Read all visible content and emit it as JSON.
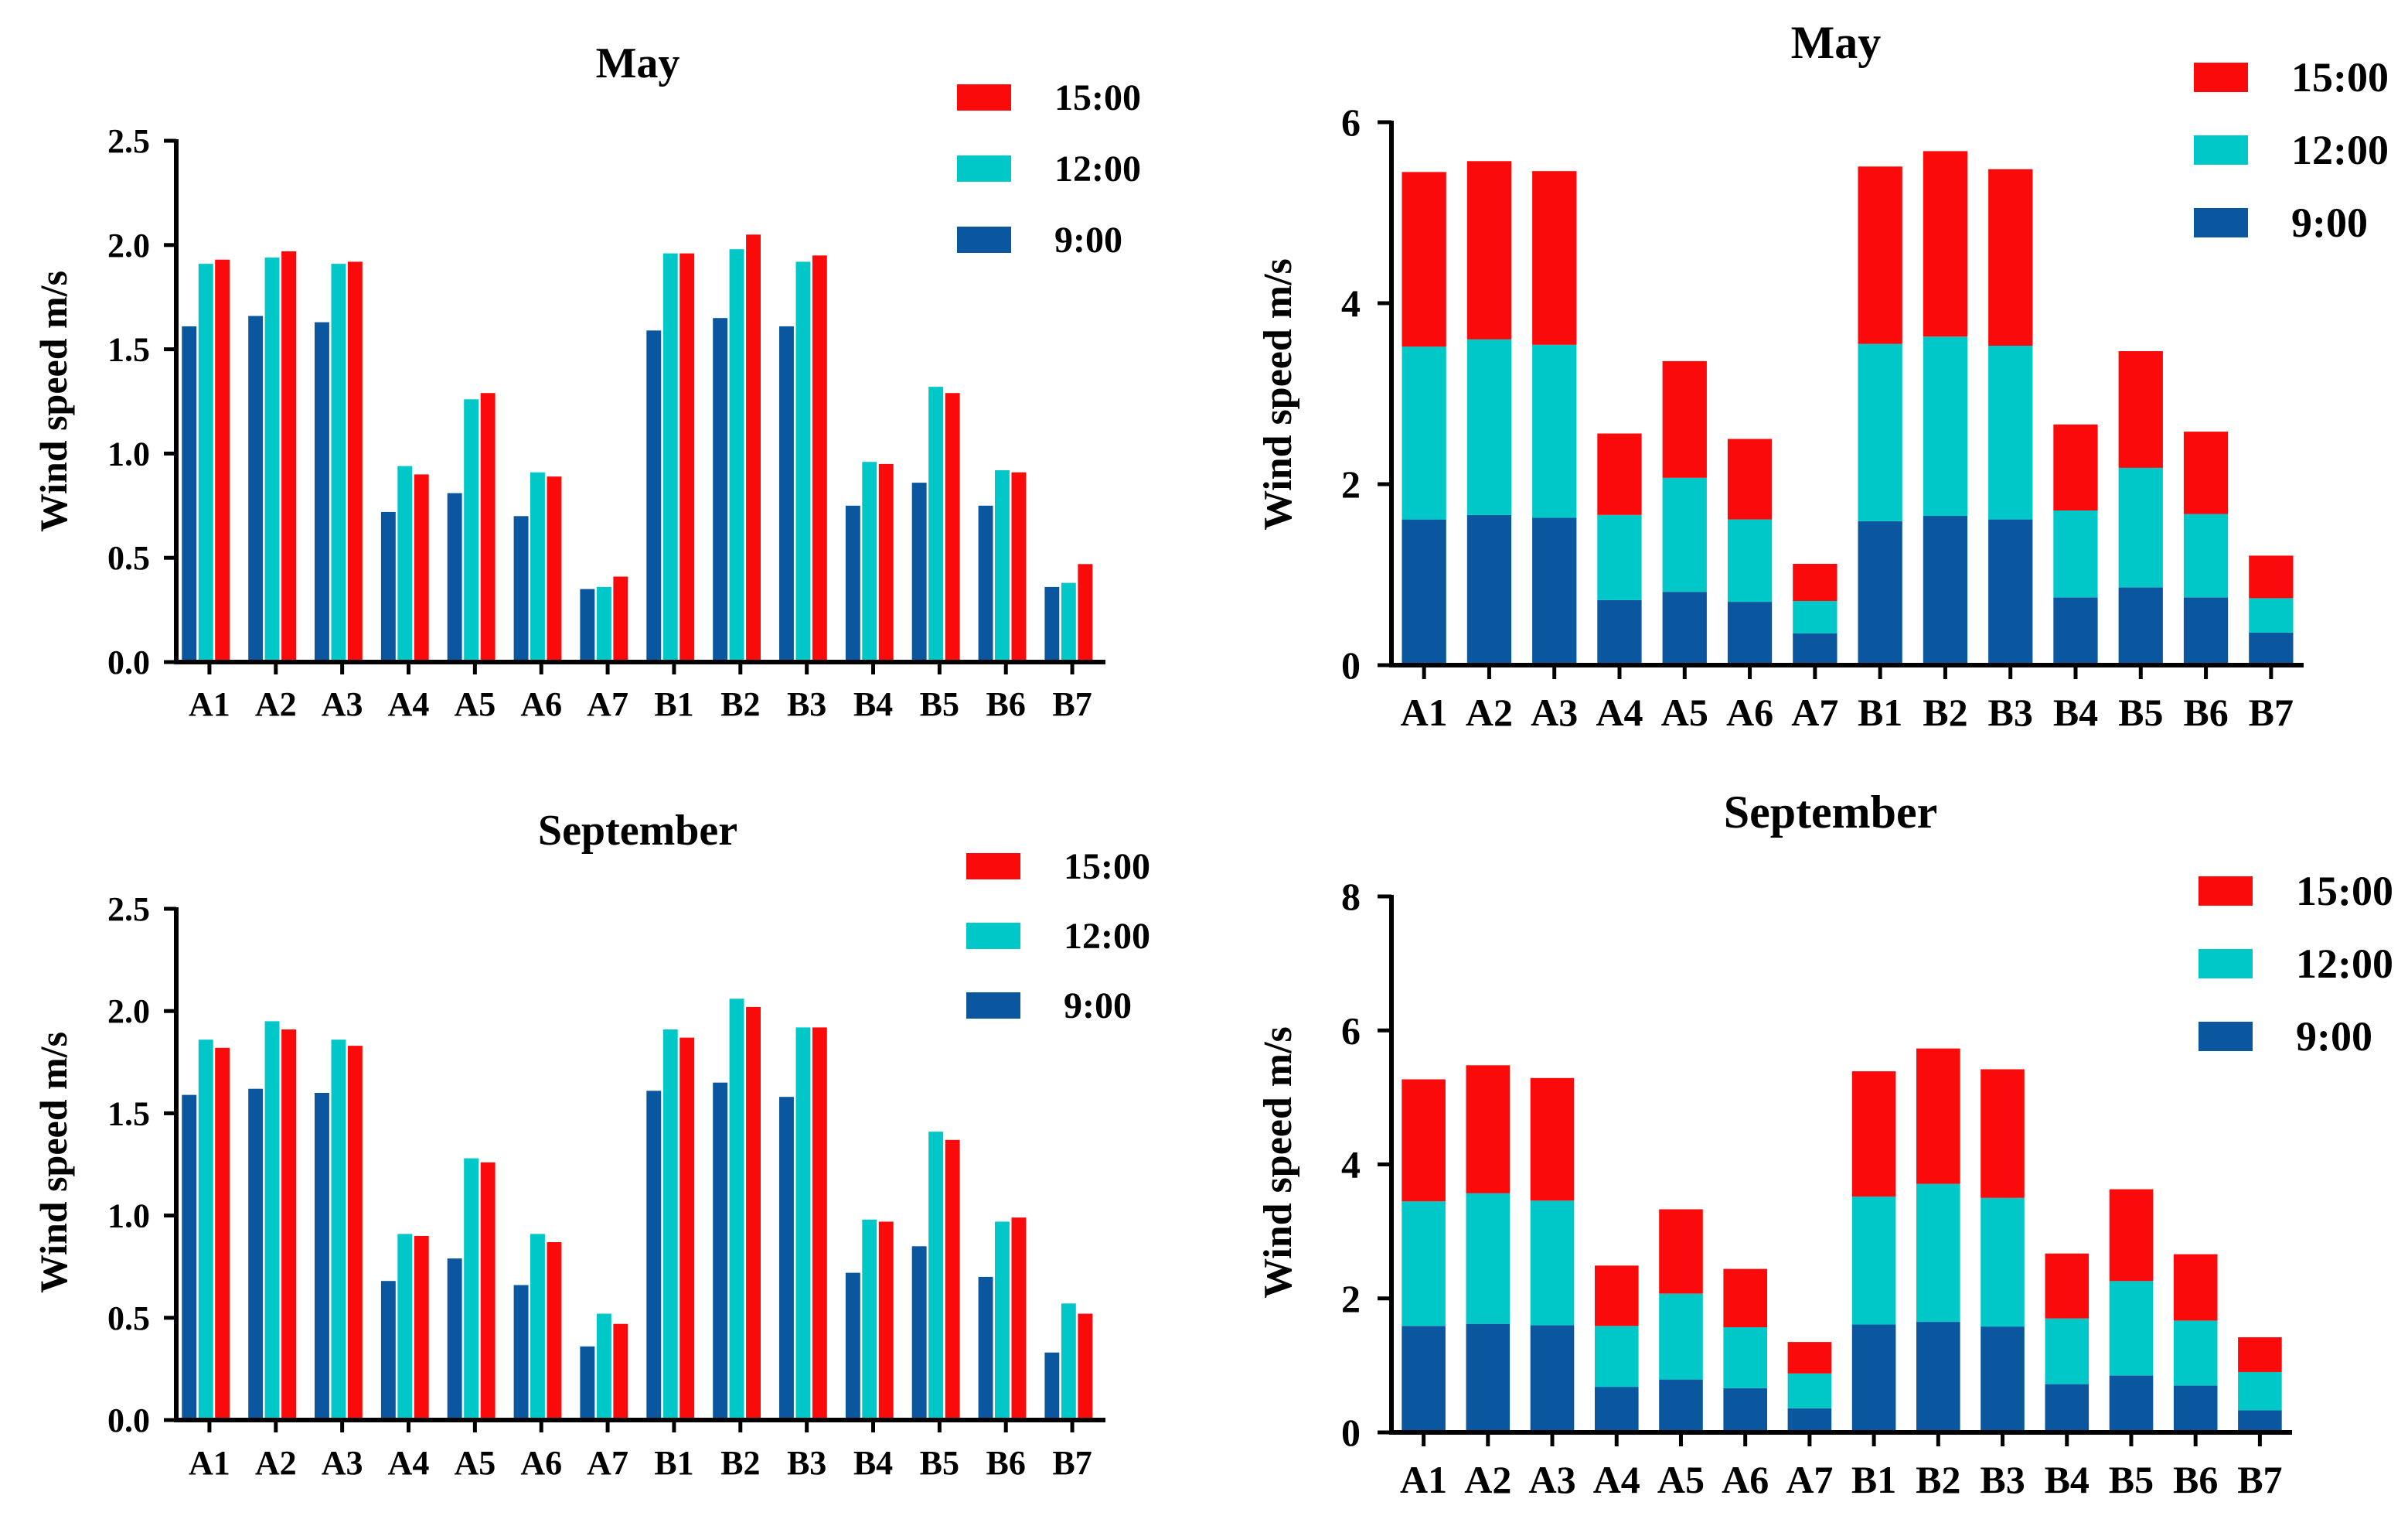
{
  "chart_data": [
    {
      "type": "bar",
      "title": "May",
      "xlabel": "",
      "ylabel": "Wind speed m/s",
      "ylim": [
        0,
        2.5
      ],
      "yticks": [
        "0.0",
        "0.5",
        "1.0",
        "1.5",
        "2.0",
        "2.5"
      ],
      "categories": [
        "A1",
        "A2",
        "A3",
        "A4",
        "A5",
        "A6",
        "A7",
        "B1",
        "B2",
        "B3",
        "B4",
        "B5",
        "B6",
        "B7"
      ],
      "series": [
        {
          "name": "9:00",
          "color": "#0a57a0",
          "values": [
            1.61,
            1.66,
            1.63,
            0.72,
            0.81,
            0.7,
            0.35,
            1.59,
            1.65,
            1.61,
            0.75,
            0.86,
            0.75,
            0.36
          ]
        },
        {
          "name": "12:00",
          "color": "#00c8c8",
          "values": [
            1.91,
            1.94,
            1.91,
            0.94,
            1.26,
            0.91,
            0.36,
            1.96,
            1.98,
            1.92,
            0.96,
            1.32,
            0.92,
            0.38
          ]
        },
        {
          "name": "15:00",
          "color": "#fa0a0a",
          "values": [
            1.93,
            1.97,
            1.92,
            0.9,
            1.29,
            0.89,
            0.41,
            1.96,
            2.05,
            1.95,
            0.95,
            1.29,
            0.91,
            0.47
          ]
        }
      ],
      "legend": [
        "15:00",
        "12:00",
        "9:00"
      ],
      "legend_position": "top-right"
    },
    {
      "type": "bar",
      "stacked": true,
      "title": "May",
      "xlabel": "",
      "ylabel": "Wind speed m/s",
      "ylim": [
        0,
        6
      ],
      "yticks": [
        "0",
        "2",
        "4",
        "6"
      ],
      "categories": [
        "A1",
        "A2",
        "A3",
        "A4",
        "A5",
        "A6",
        "A7",
        "B1",
        "B2",
        "B3",
        "B4",
        "B5",
        "B6",
        "B7"
      ],
      "series": [
        {
          "name": "9:00",
          "color": "#0a57a0",
          "values": [
            1.61,
            1.66,
            1.63,
            0.72,
            0.81,
            0.7,
            0.35,
            1.59,
            1.65,
            1.61,
            0.75,
            0.86,
            0.75,
            0.36
          ]
        },
        {
          "name": "12:00",
          "color": "#00c8c8",
          "values": [
            1.91,
            1.94,
            1.91,
            0.94,
            1.26,
            0.91,
            0.36,
            1.96,
            1.98,
            1.92,
            0.96,
            1.32,
            0.92,
            0.38
          ]
        },
        {
          "name": "15:00",
          "color": "#fa0a0a",
          "values": [
            1.93,
            1.97,
            1.92,
            0.9,
            1.29,
            0.89,
            0.41,
            1.96,
            2.05,
            1.95,
            0.95,
            1.29,
            0.91,
            0.47
          ]
        }
      ],
      "legend": [
        "15:00",
        "12:00",
        "9:00"
      ],
      "legend_position": "top-right"
    },
    {
      "type": "bar",
      "title": "September",
      "xlabel": "",
      "ylabel": "Wind speed m/s",
      "ylim": [
        0,
        2.5
      ],
      "yticks": [
        "0.0",
        "0.5",
        "1.0",
        "1.5",
        "2.0",
        "2.5"
      ],
      "categories": [
        "A1",
        "A2",
        "A3",
        "A4",
        "A5",
        "A6",
        "A7",
        "B1",
        "B2",
        "B3",
        "B4",
        "B5",
        "B6",
        "B7"
      ],
      "series": [
        {
          "name": "9:00",
          "color": "#0a57a0",
          "values": [
            1.59,
            1.62,
            1.6,
            0.68,
            0.79,
            0.66,
            0.36,
            1.61,
            1.65,
            1.58,
            0.72,
            0.85,
            0.7,
            0.33
          ]
        },
        {
          "name": "12:00",
          "color": "#00c8c8",
          "values": [
            1.86,
            1.95,
            1.86,
            0.91,
            1.28,
            0.91,
            0.52,
            1.91,
            2.06,
            1.92,
            0.98,
            1.41,
            0.97,
            0.57
          ]
        },
        {
          "name": "15:00",
          "color": "#fa0a0a",
          "values": [
            1.82,
            1.91,
            1.83,
            0.9,
            1.26,
            0.87,
            0.47,
            1.87,
            2.02,
            1.92,
            0.97,
            1.37,
            0.99,
            0.52
          ]
        }
      ],
      "legend": [
        "15:00",
        "12:00",
        "9:00"
      ],
      "legend_position": "top-right"
    },
    {
      "type": "bar",
      "stacked": true,
      "title": "September",
      "xlabel": "",
      "ylabel": "Wind speed m/s",
      "ylim": [
        0,
        8
      ],
      "yticks": [
        "0",
        "2",
        "4",
        "6",
        "8"
      ],
      "categories": [
        "A1",
        "A2",
        "A3",
        "A4",
        "A5",
        "A6",
        "A7",
        "B1",
        "B2",
        "B3",
        "B4",
        "B5",
        "B6",
        "B7"
      ],
      "series": [
        {
          "name": "9:00",
          "color": "#0a57a0",
          "values": [
            1.59,
            1.62,
            1.6,
            0.68,
            0.79,
            0.66,
            0.36,
            1.61,
            1.65,
            1.58,
            0.72,
            0.85,
            0.7,
            0.33
          ]
        },
        {
          "name": "12:00",
          "color": "#00c8c8",
          "values": [
            1.86,
            1.95,
            1.86,
            0.91,
            1.28,
            0.91,
            0.52,
            1.91,
            2.06,
            1.92,
            0.98,
            1.41,
            0.97,
            0.57
          ]
        },
        {
          "name": "15:00",
          "color": "#fa0a0a",
          "values": [
            1.82,
            1.91,
            1.83,
            0.9,
            1.26,
            0.87,
            0.47,
            1.87,
            2.02,
            1.92,
            0.97,
            1.37,
            0.99,
            0.52
          ]
        }
      ],
      "legend": [
        "15:00",
        "12:00",
        "9:00"
      ],
      "legend_position": "top-right"
    }
  ]
}
